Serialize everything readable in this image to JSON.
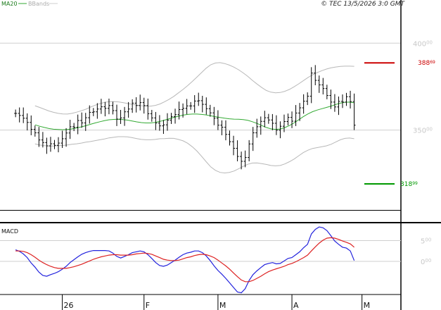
{
  "header": {
    "legend_ma": "MA20",
    "legend_bb": "BBands",
    "copyright": "© TEC 13/5/2026 3:0 GMT"
  },
  "colors": {
    "background": "#ffffff",
    "grid": "#cfcfcf",
    "frame": "#000000",
    "bars": "#000000",
    "ma": "#33aa33",
    "bbands": "#b8b8b8",
    "resistance": "#cc0000",
    "support": "#009900",
    "macd_line": "#2222dd",
    "signal_line": "#dd2222",
    "axis_text": "#c8c8c8"
  },
  "main_panel": {
    "y_ticks": [
      {
        "value": 400,
        "label": "400",
        "sup": "00"
      },
      {
        "value": 350,
        "label": "350",
        "sup": "00"
      }
    ],
    "resistance": {
      "value": 388.69,
      "label": "388",
      "sup": "69"
    },
    "support": {
      "value": 318.99,
      "label": "318",
      "sup": "99"
    }
  },
  "macd_panel": {
    "title": "MACD",
    "y_ticks": [
      {
        "value": 5,
        "label": "5",
        "sup": "00"
      },
      {
        "value": 0,
        "label": "0",
        "sup": "00"
      }
    ]
  },
  "x_axis": {
    "labels": [
      {
        "day": 12,
        "text": "26"
      },
      {
        "day": 33,
        "text": "F"
      },
      {
        "day": 52,
        "text": "M"
      },
      {
        "day": 71,
        "text": "A"
      },
      {
        "day": 89,
        "text": "M"
      }
    ]
  },
  "chart_data": [
    {
      "type": "ohlc",
      "name": "price",
      "ylim": [
        304,
        420
      ],
      "x_range": [
        -4,
        99
      ],
      "close": [
        359.6,
        358.4,
        356.8,
        354.4,
        350.4,
        348.4,
        344.3,
        342.8,
        340.9,
        342.1,
        341.2,
        342.5,
        345.0,
        348.3,
        351.9,
        351.6,
        355.5,
        354.1,
        357.1,
        360.2,
        360.5,
        362.1,
        363.4,
        362.5,
        364.1,
        361.2,
        356.3,
        357.0,
        360.5,
        362.1,
        365.5,
        364.1,
        365.8,
        364.1,
        359.4,
        357.0,
        354.0,
        352.4,
        353.0,
        355.7,
        357.7,
        358.9,
        361.8,
        362.5,
        363.9,
        363.9,
        366.7,
        366.9,
        364.8,
        362.3,
        359.9,
        356.8,
        352.8,
        351.6,
        347.5,
        343.3,
        339.5,
        334.8,
        332.0,
        334.2,
        342.0,
        348.4,
        351.9,
        355.0,
        357.1,
        355.8,
        353.9,
        349.9,
        352.2,
        354.9,
        357.3,
        355.1,
        359.8,
        362.8,
        366.6,
        369.5,
        382.8,
        378.6,
        376.0,
        373.9,
        369.9,
        366.1,
        363.3,
        366.5,
        366.1,
        369.2,
        366.4,
        352.8
      ],
      "ma20": [
        353.0,
        352.2,
        351.5,
        350.9,
        350.5,
        350.3,
        350.2,
        350.3,
        350.7,
        351.2,
        351.8,
        352.5,
        353.3,
        354.1,
        354.8,
        355.4,
        355.9,
        356.1,
        356.2,
        356.0,
        355.7,
        355.2,
        354.7,
        354.3,
        354.1,
        354.1,
        354.4,
        355.0,
        355.7,
        356.5,
        357.3,
        358.0,
        358.6,
        359.0,
        359.2,
        359.2,
        359.0,
        358.7,
        358.2,
        357.7,
        357.2,
        356.8,
        356.5,
        356.3,
        356.2,
        356.0,
        355.6,
        354.8,
        353.8,
        352.6,
        351.5,
        350.7,
        350.4,
        350.6,
        351.4,
        352.6,
        354.1,
        355.9,
        357.7,
        359.3,
        360.6,
        361.5,
        362.3,
        363.0,
        363.8,
        364.7,
        365.5,
        366.0,
        366.1,
        365.7
      ],
      "ma20_start": 5,
      "bb_upper": [
        364.0,
        363.0,
        362.0,
        361.0,
        360.2,
        359.6,
        359.3,
        359.2,
        359.6,
        360.3,
        361.1,
        362.0,
        363.2,
        364.3,
        365.2,
        365.9,
        366.3,
        366.4,
        366.2,
        365.8,
        365.3,
        364.8,
        364.3,
        364.0,
        363.8,
        363.8,
        364.2,
        365.0,
        366.3,
        367.7,
        369.4,
        371.4,
        373.4,
        375.6,
        378.0,
        380.5,
        383.1,
        385.6,
        387.6,
        388.6,
        388.8,
        388.3,
        387.4,
        386.2,
        384.7,
        382.9,
        380.9,
        378.6,
        376.5,
        374.5,
        372.8,
        371.8,
        371.4,
        371.6,
        372.3,
        373.4,
        374.9,
        376.6,
        378.4,
        380.2,
        381.8,
        383.1,
        384.2,
        385.1,
        385.8,
        386.3,
        386.6,
        386.8,
        386.8,
        386.7
      ],
      "bb_lower": [
        342.0,
        341.4,
        341.0,
        340.8,
        340.8,
        341.0,
        341.1,
        341.4,
        341.8,
        342.1,
        342.5,
        343.0,
        343.4,
        343.9,
        344.4,
        344.9,
        345.5,
        345.8,
        346.2,
        346.2,
        346.1,
        345.6,
        345.1,
        344.6,
        344.4,
        344.4,
        344.6,
        345.0,
        345.1,
        345.3,
        345.2,
        344.6,
        343.8,
        342.4,
        340.4,
        337.9,
        334.9,
        331.8,
        328.8,
        326.8,
        325.6,
        325.3,
        325.6,
        326.4,
        327.7,
        329.1,
        330.3,
        331.0,
        331.1,
        330.7,
        330.2,
        329.6,
        329.4,
        329.6,
        330.5,
        331.8,
        333.3,
        335.2,
        337.0,
        338.4,
        339.4,
        339.9,
        340.4,
        340.9,
        341.8,
        343.1,
        344.4,
        345.2,
        345.4,
        345.0
      ],
      "resistance": 388.69,
      "support": 318.99
    },
    {
      "type": "line",
      "name": "MACD",
      "ylim": [
        -8,
        9
      ],
      "series": [
        {
          "name": "MACD",
          "values": [
            2.8,
            2.4,
            1.8,
            0.9,
            -0.4,
            -1.4,
            -2.6,
            -3.4,
            -3.6,
            -3.2,
            -2.9,
            -2.5,
            -1.9,
            -1.2,
            -0.3,
            0.4,
            1.1,
            1.7,
            2.1,
            2.4,
            2.6,
            2.6,
            2.6,
            2.6,
            2.5,
            2.0,
            1.2,
            0.8,
            1.2,
            1.6,
            2.1,
            2.3,
            2.5,
            2.3,
            1.6,
            0.7,
            -0.3,
            -1.0,
            -1.2,
            -0.9,
            -0.3,
            0.3,
            1.0,
            1.6,
            2.0,
            2.2,
            2.5,
            2.5,
            2.1,
            1.3,
            0.2,
            -1.1,
            -2.2,
            -3.1,
            -4.1,
            -5.2,
            -6.3,
            -7.4,
            -7.6,
            -6.6,
            -4.6,
            -3.2,
            -2.3,
            -1.5,
            -0.8,
            -0.5,
            -0.3,
            -0.6,
            -0.5,
            0.1,
            0.7,
            0.9,
            1.6,
            2.3,
            3.3,
            4.1,
            6.6,
            7.7,
            8.3,
            8.1,
            7.4,
            6.2,
            4.9,
            4.1,
            3.4,
            3.2,
            2.5,
            0.2
          ]
        },
        {
          "name": "Signal",
          "values": [
            2.5,
            2.5,
            2.4,
            2.1,
            1.6,
            1.0,
            0.3,
            -0.3,
            -0.8,
            -1.2,
            -1.5,
            -1.7,
            -1.7,
            -1.7,
            -1.5,
            -1.3,
            -1.0,
            -0.7,
            -0.3,
            0.1,
            0.5,
            0.8,
            1.1,
            1.3,
            1.5,
            1.6,
            1.6,
            1.5,
            1.5,
            1.5,
            1.6,
            1.8,
            1.9,
            2.0,
            1.9,
            1.7,
            1.3,
            0.9,
            0.5,
            0.3,
            0.2,
            0.2,
            0.3,
            0.6,
            0.9,
            1.1,
            1.4,
            1.6,
            1.7,
            1.6,
            1.3,
            0.9,
            0.3,
            -0.4,
            -1.1,
            -1.9,
            -2.8,
            -3.7,
            -4.5,
            -4.9,
            -4.9,
            -4.6,
            -4.1,
            -3.6,
            -3.0,
            -2.5,
            -2.1,
            -1.8,
            -1.5,
            -1.2,
            -0.8,
            -0.5,
            -0.1,
            0.4,
            0.9,
            1.5,
            2.5,
            3.5,
            4.4,
            5.1,
            5.6,
            5.7,
            5.6,
            5.3,
            4.9,
            4.6,
            4.2,
            3.4
          ]
        }
      ]
    }
  ]
}
